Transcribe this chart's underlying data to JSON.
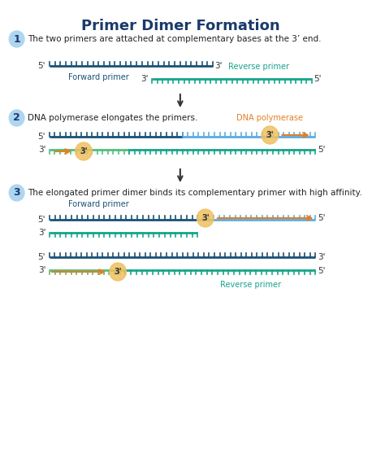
{
  "title": "Primer Dimer Formation",
  "title_color": "#1a3a6b",
  "bg_color": "#ffffff",
  "step1_text": "The two primers are attached at complementary bases at the 3’ end.",
  "step2_text": "DNA polymerase elongates the primers.",
  "step3_text": "The elongated primer dimer binds its complementary primer with high affinity.",
  "forward_primer_label": "Forward primer",
  "reverse_primer_label": "Reverse primer",
  "dna_poly_label": "DNA polymerase",
  "dark_blue": "#1a5276",
  "teal": "#17a589",
  "light_blue": "#5dade2",
  "green": "#52be80",
  "orange_arrow": "#e67e22",
  "gold_circle": "#f0c060",
  "step_circle_color": "#aed6f1",
  "step_num_color": "#1a3a6b",
  "label_blue": "#1a5276",
  "label_teal": "#17a589",
  "label_orange": "#e67e22"
}
